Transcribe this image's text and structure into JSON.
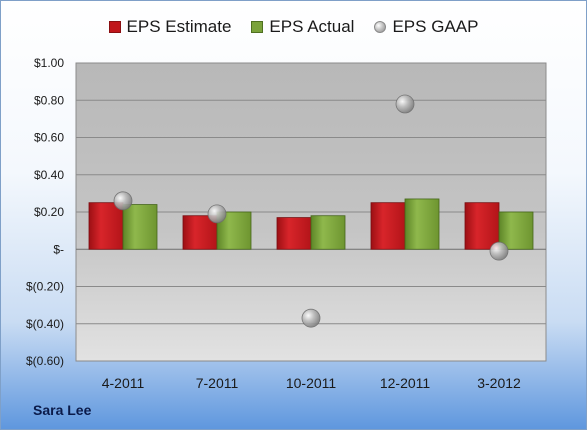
{
  "legend": {
    "estimate": "EPS Estimate",
    "actual": "EPS Actual",
    "gaap": "EPS GAAP"
  },
  "company": "Sara Lee",
  "colors": {
    "estimate": "#c0161b",
    "actual": "#7aa23a",
    "gaap": "#a8a8a8"
  },
  "chart_data": {
    "type": "bar",
    "categories": [
      "4-2011",
      "7-2011",
      "10-2011",
      "12-2011",
      "3-2012"
    ],
    "series": [
      {
        "name": "EPS Estimate",
        "type": "bar",
        "values": [
          0.25,
          0.18,
          0.17,
          0.25,
          0.25
        ]
      },
      {
        "name": "EPS Actual",
        "type": "bar",
        "values": [
          0.24,
          0.2,
          0.18,
          0.27,
          0.2
        ]
      },
      {
        "name": "EPS GAAP",
        "type": "scatter",
        "values": [
          0.26,
          0.19,
          -0.37,
          0.78,
          -0.01
        ]
      }
    ],
    "ylim": [
      -0.6,
      1.0
    ],
    "yticks": [
      1.0,
      0.8,
      0.6,
      0.4,
      0.2,
      0.0,
      -0.2,
      -0.4,
      -0.6
    ],
    "ytick_labels": [
      "$1.00",
      "$0.80",
      "$0.60",
      "$0.40",
      "$0.20",
      "$-",
      "$(0.20)",
      "$(0.40)",
      "$(0.60)"
    ],
    "grid": true,
    "legend_position": "top"
  }
}
